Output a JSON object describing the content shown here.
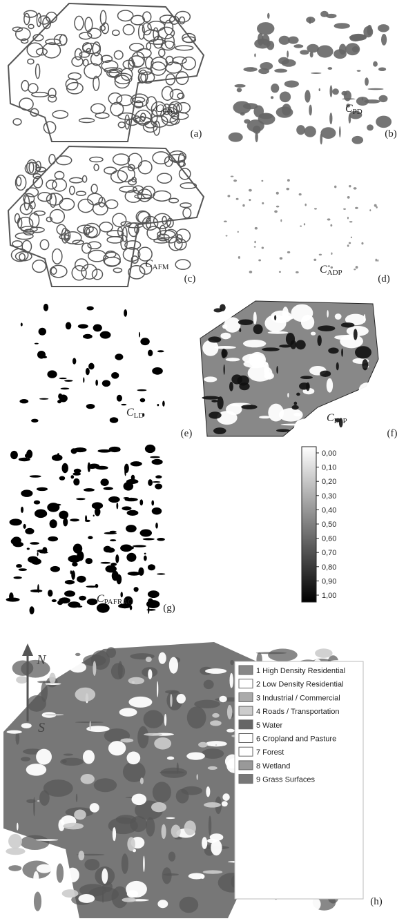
{
  "panels": [
    {
      "symbol": "C",
      "subscript": "FO",
      "label": "(a)"
    },
    {
      "symbol": "C",
      "subscript": "PD",
      "label": "(b)"
    },
    {
      "symbol": "C",
      "subscript": "AFM",
      "label": "(c)"
    },
    {
      "symbol": "C",
      "subscript": "ADP",
      "label": "(d)"
    },
    {
      "symbol": "C",
      "subscript": "LD",
      "label": "(e)"
    },
    {
      "symbol": "C",
      "subscript": "LSP",
      "label": "(f)"
    },
    {
      "symbol": "C",
      "subscript": "PAFRAC",
      "label": "(g)"
    },
    {
      "label": "(h)"
    }
  ],
  "colorbar": {
    "labels": [
      "0,00",
      "0,10",
      "0,20",
      "0,30",
      "0,40",
      "0,50",
      "0,60",
      "0,70",
      "0,80",
      "0,90",
      "1,00"
    ]
  },
  "compass": {
    "north": "N",
    "south": "S"
  },
  "legend": {
    "items": [
      "1 High Density Residential",
      "2 Low Density Residential",
      "3 Industrial / Commercial",
      "4 Roads / Transportation",
      "5 Water",
      "6 Cropland and Pasture",
      "7 Forest",
      "8 Wetland",
      "9 Grass Surfaces"
    ]
  }
}
